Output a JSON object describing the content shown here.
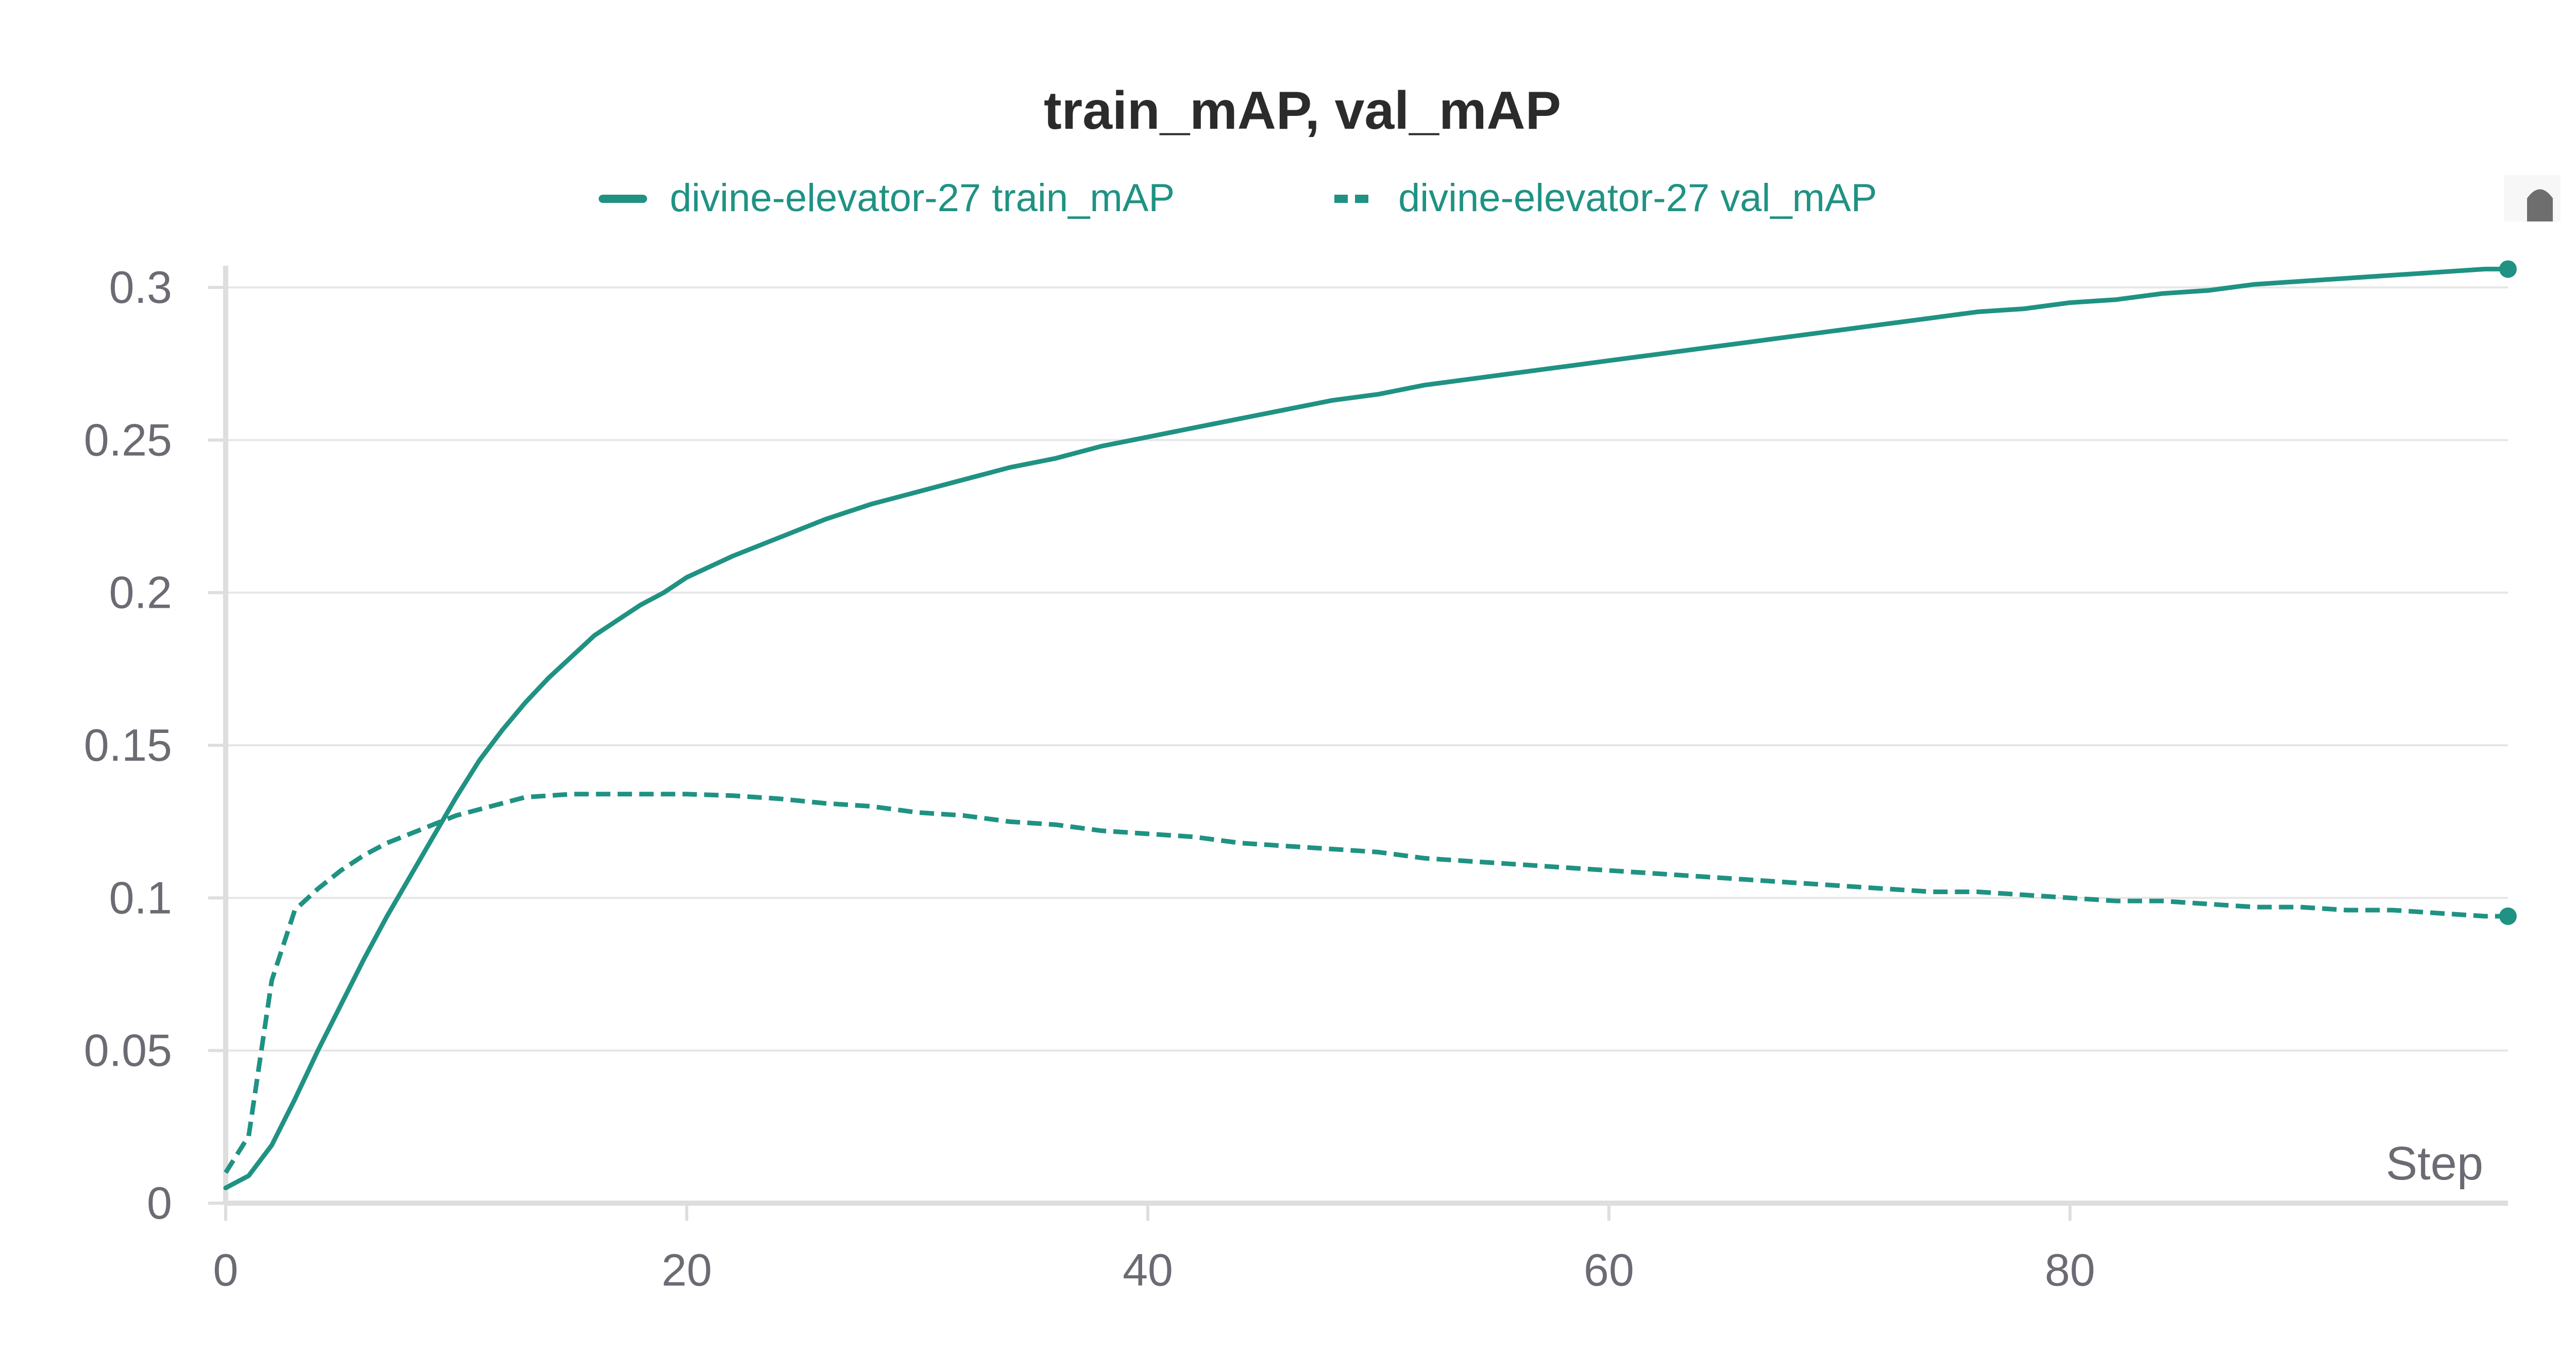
{
  "colors": {
    "series": "#1f9283",
    "grid": "#e6e6e6",
    "axis": "#dedede",
    "tick_text": "#6b6b74",
    "title_text": "#2b2b2b"
  },
  "chart_data": {
    "type": "line",
    "title": "train_mAP, val_mAP",
    "xlabel": "Step",
    "ylabel": "",
    "xlim": [
      0,
      99
    ],
    "ylim": [
      0,
      0.3
    ],
    "xticks": [
      0,
      20,
      40,
      60,
      80
    ],
    "xtick_labels": [
      "0",
      "20",
      "40",
      "60",
      "80"
    ],
    "yticks": [
      0,
      0.05,
      0.1,
      0.15,
      0.2,
      0.25,
      0.3
    ],
    "ytick_labels": [
      "0",
      "0.05",
      "0.1",
      "0.15",
      "0.2",
      "0.25",
      "0.3"
    ],
    "grid": true,
    "legend_position": "top-center",
    "series": [
      {
        "name": "divine-elevator-27 train_mAP",
        "style": "solid",
        "x": [
          0,
          1,
          2,
          3,
          4,
          5,
          6,
          7,
          8,
          9,
          10,
          11,
          12,
          13,
          14,
          15,
          16,
          17,
          18,
          19,
          20,
          22,
          24,
          26,
          28,
          30,
          32,
          34,
          36,
          38,
          40,
          42,
          44,
          46,
          48,
          50,
          52,
          54,
          56,
          58,
          60,
          62,
          64,
          66,
          68,
          70,
          72,
          74,
          76,
          78,
          80,
          82,
          84,
          86,
          88,
          90,
          92,
          94,
          96,
          98,
          99
        ],
        "values": [
          0.005,
          0.009,
          0.019,
          0.034,
          0.05,
          0.065,
          0.08,
          0.094,
          0.107,
          0.12,
          0.133,
          0.145,
          0.155,
          0.164,
          0.172,
          0.179,
          0.186,
          0.191,
          0.196,
          0.2,
          0.205,
          0.212,
          0.218,
          0.224,
          0.229,
          0.233,
          0.237,
          0.241,
          0.244,
          0.248,
          0.251,
          0.254,
          0.257,
          0.26,
          0.263,
          0.265,
          0.268,
          0.27,
          0.272,
          0.274,
          0.276,
          0.278,
          0.28,
          0.282,
          0.284,
          0.286,
          0.288,
          0.29,
          0.292,
          0.293,
          0.295,
          0.296,
          0.298,
          0.299,
          0.301,
          0.302,
          0.303,
          0.304,
          0.305,
          0.306,
          0.306
        ]
      },
      {
        "name": "divine-elevator-27 val_mAP",
        "style": "dashed",
        "x": [
          0,
          1,
          2,
          3,
          4,
          5,
          6,
          7,
          8,
          9,
          10,
          11,
          12,
          13,
          14,
          15,
          16,
          17,
          18,
          19,
          20,
          22,
          24,
          26,
          28,
          30,
          32,
          34,
          36,
          38,
          40,
          42,
          44,
          46,
          48,
          50,
          52,
          54,
          56,
          58,
          60,
          62,
          64,
          66,
          68,
          70,
          72,
          74,
          76,
          78,
          80,
          82,
          84,
          86,
          88,
          90,
          92,
          94,
          96,
          98,
          99
        ],
        "values": [
          0.01,
          0.022,
          0.073,
          0.096,
          0.103,
          0.109,
          0.114,
          0.118,
          0.121,
          0.124,
          0.127,
          0.129,
          0.131,
          0.133,
          0.1335,
          0.134,
          0.134,
          0.134,
          0.134,
          0.134,
          0.134,
          0.1335,
          0.1325,
          0.131,
          0.13,
          0.128,
          0.127,
          0.125,
          0.124,
          0.122,
          0.121,
          0.12,
          0.118,
          0.117,
          0.116,
          0.115,
          0.113,
          0.112,
          0.111,
          0.11,
          0.109,
          0.108,
          0.107,
          0.106,
          0.105,
          0.104,
          0.103,
          0.102,
          0.102,
          0.101,
          0.1,
          0.099,
          0.099,
          0.098,
          0.097,
          0.097,
          0.096,
          0.096,
          0.095,
          0.094,
          0.094
        ]
      }
    ]
  }
}
